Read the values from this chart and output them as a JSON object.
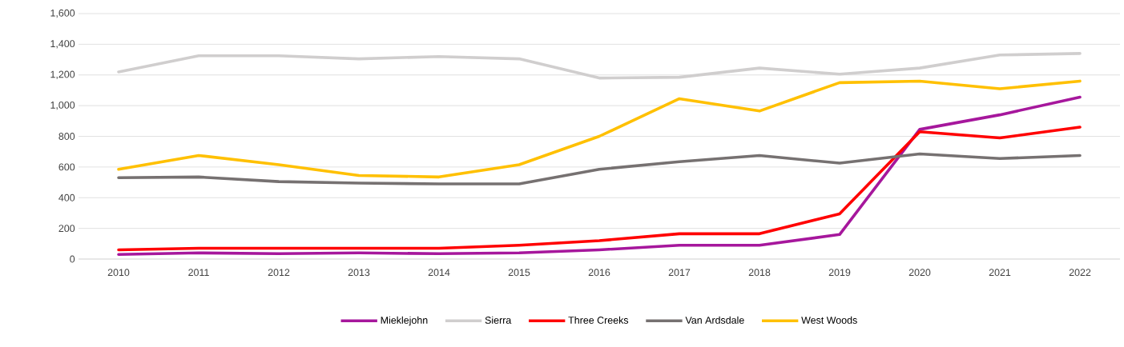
{
  "chart_data": {
    "type": "line",
    "categories": [
      "2010",
      "2011",
      "2012",
      "2013",
      "2014",
      "2015",
      "2016",
      "2017",
      "2018",
      "2019",
      "2020",
      "2021",
      "2022"
    ],
    "ylim": [
      0,
      1600
    ],
    "yticks": [
      0,
      200,
      400,
      600,
      800,
      {
        "value": 1000,
        "label": "1,000"
      },
      {
        "value": 1200,
        "label": "1,200"
      },
      {
        "value": 1400,
        "label": "1,400"
      },
      {
        "value": 1600,
        "label": "1,600"
      }
    ],
    "grid": "y",
    "legend": "bottom",
    "marker": "none",
    "line_style": "solid",
    "series": [
      {
        "name": "Mieklejohn",
        "color": "#a6179c",
        "values": [
          30,
          40,
          35,
          40,
          35,
          40,
          60,
          90,
          90,
          160,
          845,
          940,
          1055
        ]
      },
      {
        "name": "Sierra",
        "color": "#d0cece",
        "values": [
          1220,
          1325,
          1325,
          1305,
          1320,
          1305,
          1180,
          1185,
          1245,
          1205,
          1245,
          1330,
          1340
        ]
      },
      {
        "name": "Three Creeks",
        "color": "#ff0000",
        "values": [
          60,
          70,
          70,
          70,
          70,
          90,
          120,
          165,
          165,
          295,
          830,
          790,
          860
        ]
      },
      {
        "name": "Van Ardsdale",
        "color": "#767171",
        "values": [
          530,
          535,
          505,
          495,
          490,
          490,
          585,
          635,
          675,
          625,
          685,
          655,
          675
        ]
      },
      {
        "name": "West Woods",
        "color": "#ffc000",
        "values": [
          585,
          675,
          615,
          545,
          535,
          615,
          800,
          1045,
          965,
          1150,
          1160,
          1110,
          1160
        ]
      }
    ]
  }
}
